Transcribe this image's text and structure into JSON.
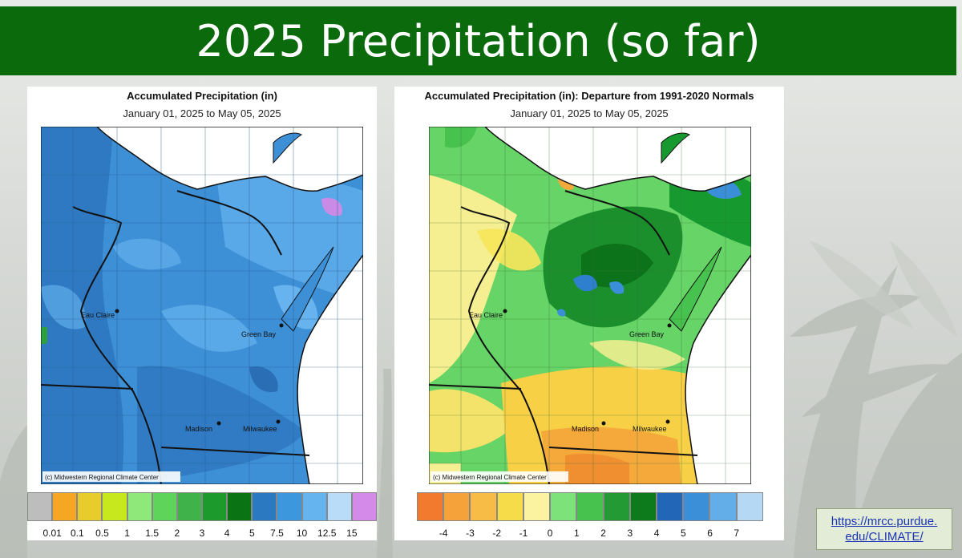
{
  "slide": {
    "title": "2025 Precipitation (so far)",
    "link_line1": "https://mrcc.purdue.",
    "link_line2": "edu/CLIMATE/"
  },
  "maps": [
    {
      "title": "Accumulated Precipitation (in)",
      "subtitle": "January 01, 2025 to May 05, 2025",
      "credit": "(c) Midwestern Regional Climate Center",
      "cities": [
        "Eau Claire",
        "Green Bay",
        "Madison",
        "Milwaukee"
      ],
      "legend": {
        "colors": [
          "#bdbdbd",
          "#f5a623",
          "#e8cc2c",
          "#c8e81e",
          "#8fe87a",
          "#5ed45a",
          "#3fb24a",
          "#1d9a2c",
          "#0a7414",
          "#2b79c0",
          "#3d97dc",
          "#66b4ef",
          "#b9dcf8",
          "#d38ae8"
        ],
        "ticks": [
          "0.01",
          "0.1",
          "0.5",
          "1",
          "1.5",
          "2",
          "3",
          "4",
          "5",
          "7.5",
          "10",
          "12.5",
          "15"
        ]
      }
    },
    {
      "title": "Accumulated Precipitation (in): Departure from 1991-2020 Normals",
      "subtitle": "January 01, 2025 to May 05, 2025",
      "credit": "(c) Midwestern Regional Climate Center",
      "cities": [
        "Eau Claire",
        "Green Bay",
        "Madison",
        "Milwaukee"
      ],
      "legend": {
        "colors": [
          "#f27a2e",
          "#f6a23a",
          "#f7bc45",
          "#f5dc48",
          "#fbf3a0",
          "#7ee27a",
          "#48c24e",
          "#249a34",
          "#0d7a1c",
          "#2266b8",
          "#3b8fd8",
          "#63aee9",
          "#b5d8f5"
        ],
        "ticks": [
          "-4",
          "-3",
          "-2",
          "-1",
          "0",
          "1",
          "2",
          "3",
          "4",
          "5",
          "6",
          "7"
        ]
      }
    }
  ]
}
